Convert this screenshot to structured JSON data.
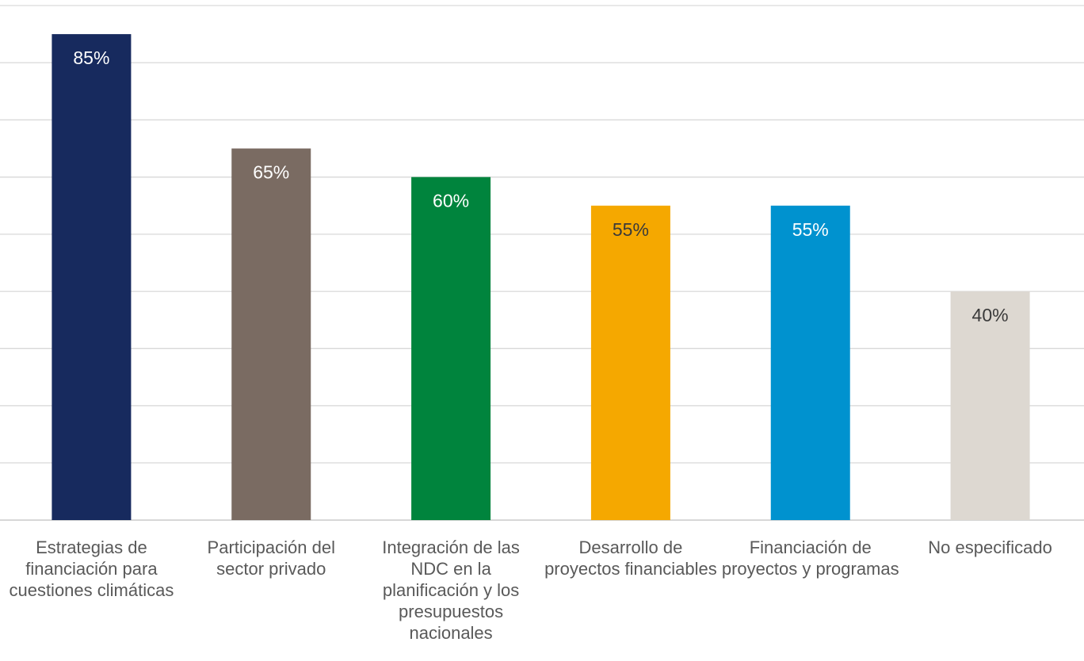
{
  "chart_data": {
    "type": "bar",
    "categories": [
      "Estrategias de financiación para cuestiones climáticas",
      "Participación del sector privado",
      "Integración de las NDC en la planificación y los presupuestos nacionales",
      "Desarrollo de proyectos financiables",
      "Financiación de proyectos y programas",
      "No especificado"
    ],
    "values": [
      85,
      65,
      60,
      55,
      55,
      40
    ],
    "value_labels": [
      "85%",
      "65%",
      "60%",
      "55%",
      "55%",
      "40%"
    ],
    "colors": [
      "#172a5e",
      "#7a6b62",
      "#00843d",
      "#f5a800",
      "#0092cf",
      "#ddd8d1"
    ],
    "ylim": [
      0,
      90
    ],
    "yticks": [
      0,
      10,
      20,
      30,
      40,
      50,
      60,
      70,
      80,
      90
    ],
    "grid": true
  }
}
